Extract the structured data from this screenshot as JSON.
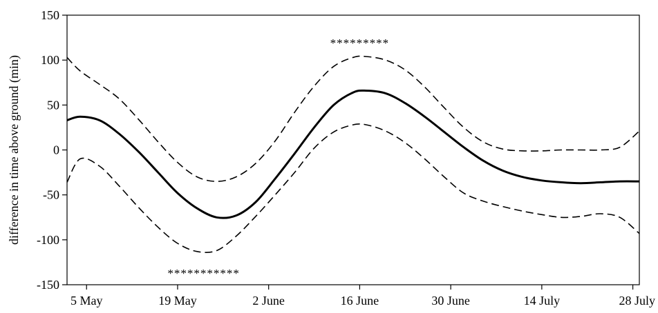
{
  "chart_data": {
    "type": "line",
    "title": "",
    "xlabel": "",
    "ylabel": "difference in time above ground (min)",
    "ylim": [
      -150,
      150
    ],
    "y_ticks": [
      -150,
      -100,
      -50,
      0,
      50,
      100,
      150
    ],
    "xlim": [
      "2 May",
      "29 July"
    ],
    "x_ticks": [
      "5 May",
      "19 May",
      "2 June",
      "16 June",
      "30 June",
      "14 July",
      "28 July"
    ],
    "grid": false,
    "legend": "none",
    "series": [
      {
        "style": "solid",
        "x": [
          "2 May",
          "4 May",
          "7 May",
          "10 May",
          "13 May",
          "16 May",
          "19 May",
          "22 May",
          "25 May",
          "28 May",
          "31 May",
          "3 June",
          "6 June",
          "9 June",
          "12 June",
          "15 June",
          "17 June",
          "20 June",
          "23 June",
          "26 June",
          "29 June",
          "2 July",
          "5 July",
          "8 July",
          "11 July",
          "14 July",
          "17 July",
          "20 July",
          "23 July",
          "26 July",
          "29 July"
        ],
        "y": [
          33,
          37,
          33,
          18,
          -2,
          -25,
          -48,
          -65,
          -75,
          -73,
          -58,
          -32,
          -4,
          25,
          50,
          64,
          66,
          63,
          52,
          37,
          20,
          3,
          -12,
          -23,
          -30,
          -34,
          -36,
          -37,
          -36,
          -35,
          -35
        ]
      },
      {
        "style": "dashed",
        "x": [
          "2 May",
          "4 May",
          "7 May",
          "10 May",
          "13 May",
          "16 May",
          "19 May",
          "22 May",
          "25 May",
          "28 May",
          "31 May",
          "3 June",
          "6 June",
          "9 June",
          "12 June",
          "15 June",
          "17 June",
          "20 June",
          "23 June",
          "26 June",
          "29 June",
          "2 July",
          "5 July",
          "8 July",
          "11 July",
          "14 July",
          "17 July",
          "20 July",
          "23 July",
          "26 July",
          "29 July"
        ],
        "y": [
          103,
          88,
          73,
          57,
          34,
          9,
          -14,
          -30,
          -35,
          -30,
          -15,
          10,
          42,
          71,
          93,
          103,
          104,
          100,
          89,
          70,
          47,
          25,
          9,
          1,
          -1,
          -1,
          0,
          0,
          0,
          3,
          21
        ]
      },
      {
        "style": "dashed",
        "x": [
          "2 May",
          "4 May",
          "7 May",
          "10 May",
          "13 May",
          "16 May",
          "19 May",
          "22 May",
          "25 May",
          "28 May",
          "31 May",
          "3 June",
          "6 June",
          "9 June",
          "12 June",
          "15 June",
          "17 June",
          "20 June",
          "23 June",
          "26 June",
          "29 June",
          "2 July",
          "5 July",
          "8 July",
          "11 July",
          "14 July",
          "17 July",
          "20 July",
          "23 July",
          "26 July",
          "29 July"
        ],
        "y": [
          -36,
          -10,
          -18,
          -40,
          -64,
          -86,
          -104,
          -113,
          -112,
          -96,
          -74,
          -50,
          -25,
          2,
          20,
          28,
          28,
          21,
          8,
          -10,
          -30,
          -48,
          -57,
          -63,
          -68,
          -72,
          -75,
          -74,
          -71,
          -75,
          -93
        ]
      }
    ],
    "annotations": [
      {
        "text": "*********",
        "x": "16 June",
        "y": 123
      },
      {
        "text": "***********",
        "x": "23 May",
        "y": -133
      }
    ]
  }
}
